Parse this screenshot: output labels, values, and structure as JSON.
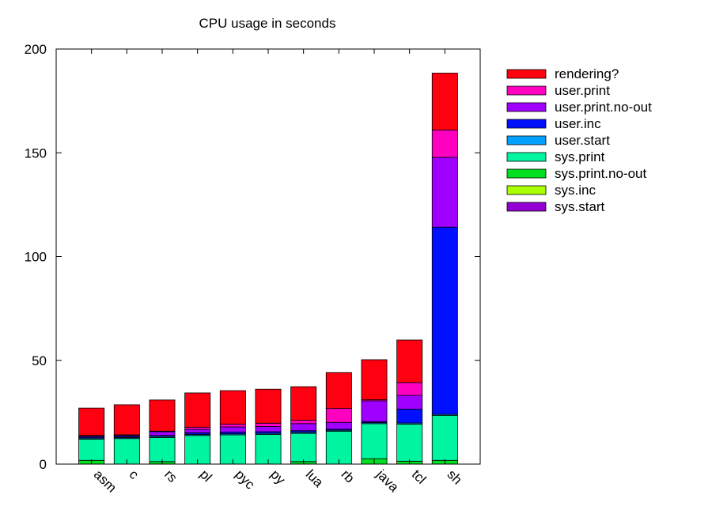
{
  "chart_data": {
    "type": "bar",
    "stacked": true,
    "title": "CPU usage in seconds",
    "xlabel": "",
    "ylabel": "",
    "ylim": [
      0,
      200
    ],
    "yticks": [
      0,
      50,
      100,
      150,
      200
    ],
    "grid": false,
    "legend_position": "right",
    "categories": [
      "asm",
      "c",
      "rs",
      "pl",
      "pyc",
      "py",
      "lua",
      "rb",
      "java",
      "tcl",
      "sh"
    ],
    "series": [
      {
        "name": "sys.start",
        "color": "#9400d3",
        "values": [
          0,
          0,
          0,
          0,
          0,
          0,
          0,
          0,
          0,
          0,
          0
        ]
      },
      {
        "name": "sys.inc",
        "color": "#aaff00",
        "values": [
          0,
          0,
          0,
          0,
          0,
          0,
          0,
          0,
          0,
          0,
          0
        ]
      },
      {
        "name": "sys.print.no-out",
        "color": "#00e020",
        "values": [
          1.8,
          0,
          1.2,
          0,
          0,
          0,
          1.2,
          0,
          2.6,
          1.4,
          1.8
        ]
      },
      {
        "name": "sys.print",
        "color": "#00f5a0",
        "values": [
          10.2,
          12.3,
          11.6,
          13.8,
          14.1,
          14.3,
          13.6,
          15.8,
          16.9,
          17.9,
          21.7
        ]
      },
      {
        "name": "user.start",
        "color": "#00a0ff",
        "values": [
          0.5,
          0.5,
          0.5,
          0.5,
          0.5,
          0.5,
          0.5,
          0.5,
          0.5,
          0.5,
          0.5
        ]
      },
      {
        "name": "user.inc",
        "color": "#0010ff",
        "values": [
          0.5,
          0.5,
          0.5,
          0.8,
          0.8,
          0.8,
          0.8,
          0.5,
          0.5,
          6.7,
          90.2
        ]
      },
      {
        "name": "user.print.no-out",
        "color": "#a000ff",
        "values": [
          0.5,
          0.5,
          1.8,
          1.6,
          2.5,
          2.5,
          3.4,
          3.3,
          10.0,
          6.6,
          33.6
        ]
      },
      {
        "name": "user.print",
        "color": "#ff00c0",
        "values": [
          0.3,
          0.3,
          0.3,
          1.1,
          1.4,
          1.6,
          1.6,
          6.7,
          0.5,
          6.2,
          13.2
        ]
      },
      {
        "name": "rendering?",
        "color": "#ff0010",
        "values": [
          13.2,
          14.5,
          15.0,
          16.5,
          16.1,
          16.4,
          16.2,
          17.3,
          19.3,
          20.5,
          27.4
        ]
      }
    ]
  }
}
